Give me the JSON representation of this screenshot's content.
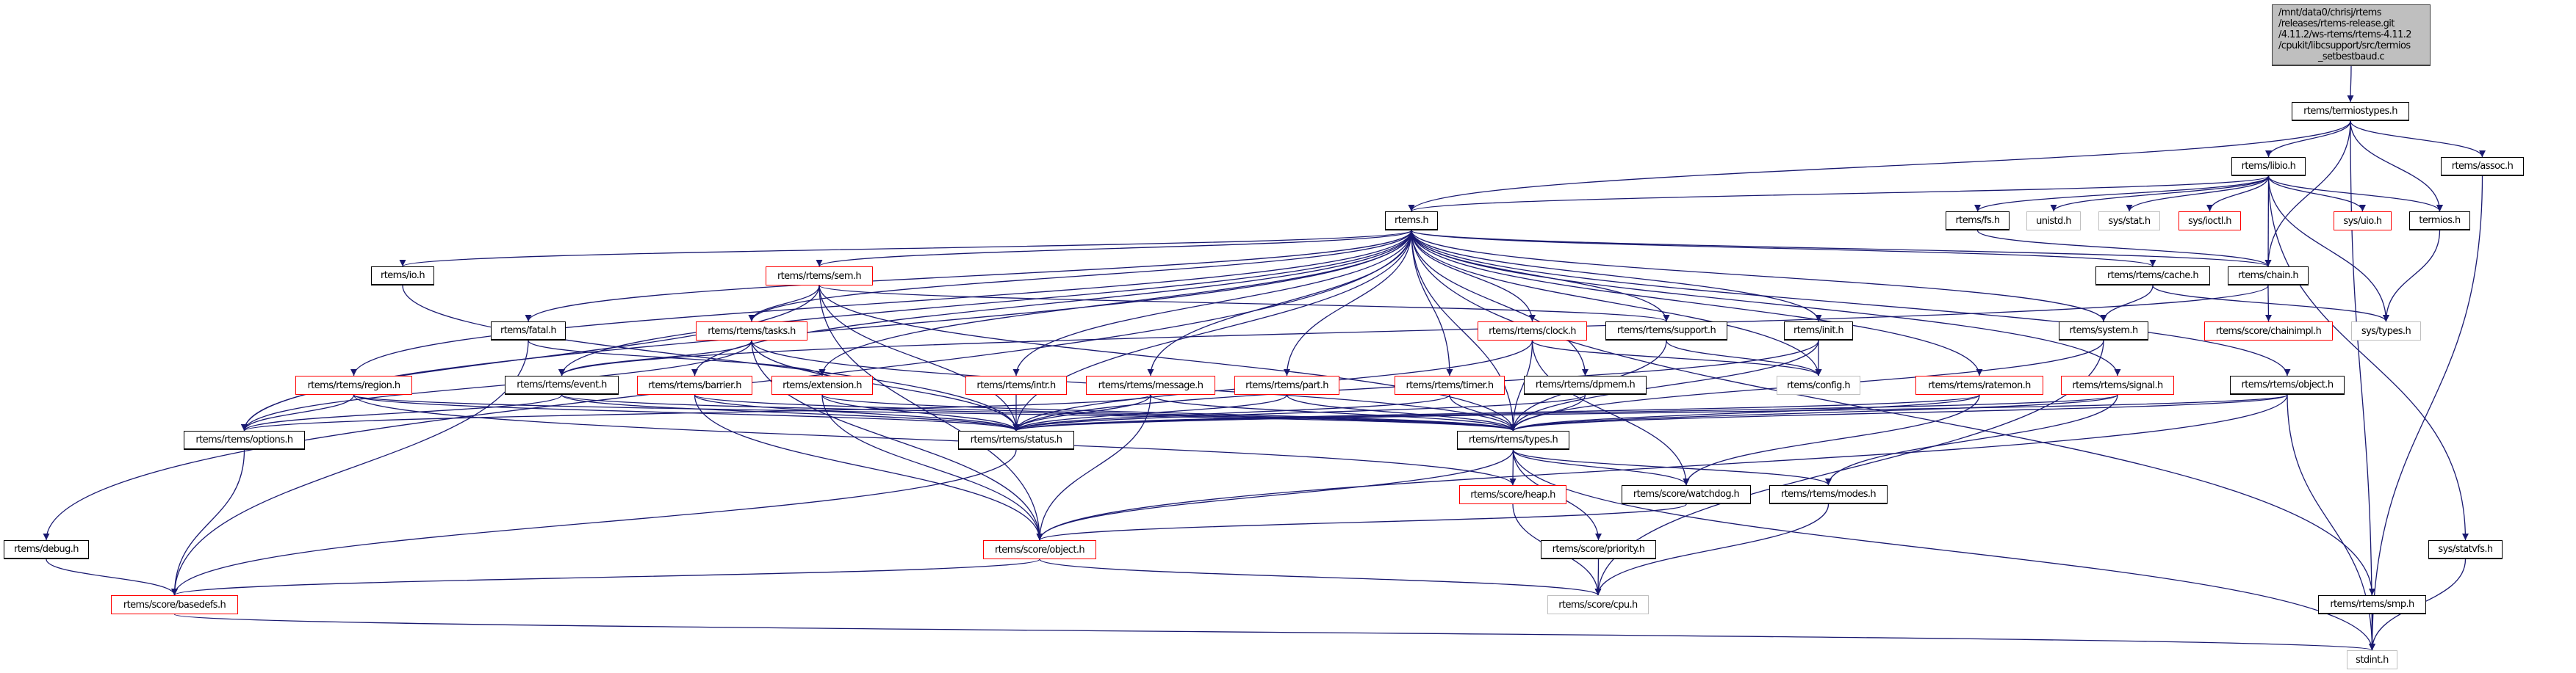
{
  "graph": {
    "colors": {
      "edge": "#191970",
      "root_fill": "#bfbfbf",
      "truncated_border": "#ff0000",
      "undocumented_border": "#bfbfbf",
      "documented_border": "#000000"
    },
    "root": {
      "id": "root",
      "lines": [
        "/mnt/data0/chrisj/rtems",
        "/releases/rtems-release.git",
        "/4.11.2/ws-rtems/rtems-4.11.2",
        "/cpukit/libcsupport/src/termios",
        "_setbestbaud.c"
      ]
    },
    "nodes": [
      {
        "id": "termiostypes",
        "label": "rtems/termiostypes.h",
        "style": "documented"
      },
      {
        "id": "libio",
        "label": "rtems/libio.h",
        "style": "documented"
      },
      {
        "id": "assoc",
        "label": "rtems/assoc.h",
        "style": "documented"
      },
      {
        "id": "rtems",
        "label": "rtems.h",
        "style": "documented"
      },
      {
        "id": "fs",
        "label": "rtems/fs.h",
        "style": "documented"
      },
      {
        "id": "unistd",
        "label": "unistd.h",
        "style": "undocumented"
      },
      {
        "id": "sysstat",
        "label": "sys/stat.h",
        "style": "undocumented"
      },
      {
        "id": "ioctl",
        "label": "sys/ioctl.h",
        "style": "truncated"
      },
      {
        "id": "uio",
        "label": "sys/uio.h",
        "style": "truncated"
      },
      {
        "id": "termios",
        "label": "termios.h",
        "style": "documented"
      },
      {
        "id": "io",
        "label": "rtems/io.h",
        "style": "documented"
      },
      {
        "id": "sem",
        "label": "rtems/rtems/sem.h",
        "style": "truncated"
      },
      {
        "id": "cache",
        "label": "rtems/rtems/cache.h",
        "style": "documented"
      },
      {
        "id": "chain",
        "label": "rtems/chain.h",
        "style": "documented"
      },
      {
        "id": "fatal",
        "label": "rtems/fatal.h",
        "style": "documented"
      },
      {
        "id": "tasks",
        "label": "rtems/rtems/tasks.h",
        "style": "truncated"
      },
      {
        "id": "clock",
        "label": "rtems/rtems/clock.h",
        "style": "truncated"
      },
      {
        "id": "support",
        "label": "rtems/rtems/support.h",
        "style": "documented"
      },
      {
        "id": "init",
        "label": "rtems/init.h",
        "style": "documented"
      },
      {
        "id": "system",
        "label": "rtems/system.h",
        "style": "documented"
      },
      {
        "id": "chainimpl",
        "label": "rtems/score/chainimpl.h",
        "style": "truncated"
      },
      {
        "id": "systypes",
        "label": "sys/types.h",
        "style": "undocumented"
      },
      {
        "id": "region",
        "label": "rtems/rtems/region.h",
        "style": "truncated"
      },
      {
        "id": "event",
        "label": "rtems/rtems/event.h",
        "style": "documented"
      },
      {
        "id": "barrier",
        "label": "rtems/rtems/barrier.h",
        "style": "truncated"
      },
      {
        "id": "extension",
        "label": "rtems/extension.h",
        "style": "truncated"
      },
      {
        "id": "intr",
        "label": "rtems/rtems/intr.h",
        "style": "truncated"
      },
      {
        "id": "message",
        "label": "rtems/rtems/message.h",
        "style": "truncated"
      },
      {
        "id": "part",
        "label": "rtems/rtems/part.h",
        "style": "truncated"
      },
      {
        "id": "timer",
        "label": "rtems/rtems/timer.h",
        "style": "truncated"
      },
      {
        "id": "dpmem",
        "label": "rtems/rtems/dpmem.h",
        "style": "documented"
      },
      {
        "id": "config",
        "label": "rtems/config.h",
        "style": "undocumented"
      },
      {
        "id": "ratemon",
        "label": "rtems/rtems/ratemon.h",
        "style": "truncated"
      },
      {
        "id": "signal",
        "label": "rtems/rtems/signal.h",
        "style": "truncated"
      },
      {
        "id": "robject",
        "label": "rtems/rtems/object.h",
        "style": "documented"
      },
      {
        "id": "options",
        "label": "rtems/rtems/options.h",
        "style": "documented"
      },
      {
        "id": "status",
        "label": "rtems/rtems/status.h",
        "style": "documented"
      },
      {
        "id": "types",
        "label": "rtems/rtems/types.h",
        "style": "documented"
      },
      {
        "id": "heap",
        "label": "rtems/score/heap.h",
        "style": "truncated"
      },
      {
        "id": "watchdog",
        "label": "rtems/score/watchdog.h",
        "style": "documented"
      },
      {
        "id": "modes",
        "label": "rtems/rtems/modes.h",
        "style": "documented"
      },
      {
        "id": "debug",
        "label": "rtems/debug.h",
        "style": "documented"
      },
      {
        "id": "sobject",
        "label": "rtems/score/object.h",
        "style": "truncated"
      },
      {
        "id": "priority",
        "label": "rtems/score/priority.h",
        "style": "documented"
      },
      {
        "id": "statvfs",
        "label": "sys/statvfs.h",
        "style": "documented"
      },
      {
        "id": "basedefs",
        "label": "rtems/score/basedefs.h",
        "style": "truncated"
      },
      {
        "id": "cpu",
        "label": "rtems/score/cpu.h",
        "style": "undocumented"
      },
      {
        "id": "smp",
        "label": "rtems/rtems/smp.h",
        "style": "documented"
      },
      {
        "id": "stdint",
        "label": "stdint.h",
        "style": "undocumented"
      }
    ],
    "edges": [
      [
        "root",
        "termiostypes"
      ],
      [
        "termiostypes",
        "rtems"
      ],
      [
        "termiostypes",
        "libio"
      ],
      [
        "termiostypes",
        "assoc"
      ],
      [
        "termiostypes",
        "termios"
      ],
      [
        "termiostypes",
        "chain"
      ],
      [
        "termiostypes",
        "stdint"
      ],
      [
        "libio",
        "rtems"
      ],
      [
        "libio",
        "fs"
      ],
      [
        "libio",
        "unistd"
      ],
      [
        "libio",
        "sysstat"
      ],
      [
        "libio",
        "ioctl"
      ],
      [
        "libio",
        "uio"
      ],
      [
        "libio",
        "termios"
      ],
      [
        "libio",
        "chain"
      ],
      [
        "libio",
        "systypes"
      ],
      [
        "libio",
        "statvfs"
      ],
      [
        "assoc",
        "stdint"
      ],
      [
        "fs",
        "chain"
      ],
      [
        "termios",
        "systypes"
      ],
      [
        "chain",
        "chainimpl"
      ],
      [
        "chain",
        "event"
      ],
      [
        "cache",
        "system"
      ],
      [
        "cache",
        "systypes"
      ],
      [
        "rtems",
        "io"
      ],
      [
        "rtems",
        "sem"
      ],
      [
        "rtems",
        "fatal"
      ],
      [
        "rtems",
        "tasks"
      ],
      [
        "rtems",
        "debug"
      ],
      [
        "rtems",
        "options"
      ],
      [
        "rtems",
        "region"
      ],
      [
        "rtems",
        "event"
      ],
      [
        "rtems",
        "barrier"
      ],
      [
        "rtems",
        "extension"
      ],
      [
        "rtems",
        "intr"
      ],
      [
        "rtems",
        "message"
      ],
      [
        "rtems",
        "part"
      ],
      [
        "rtems",
        "timer"
      ],
      [
        "rtems",
        "dpmem"
      ],
      [
        "rtems",
        "clock"
      ],
      [
        "rtems",
        "support"
      ],
      [
        "rtems",
        "init"
      ],
      [
        "rtems",
        "config"
      ],
      [
        "rtems",
        "ratemon"
      ],
      [
        "rtems",
        "signal"
      ],
      [
        "rtems",
        "robject"
      ],
      [
        "rtems",
        "cache"
      ],
      [
        "rtems",
        "chain"
      ],
      [
        "rtems",
        "system"
      ],
      [
        "rtems",
        "status"
      ],
      [
        "rtems",
        "types"
      ],
      [
        "rtems",
        "smp"
      ],
      [
        "io",
        "status"
      ],
      [
        "sem",
        "tasks"
      ],
      [
        "sem",
        "options"
      ],
      [
        "sem",
        "status"
      ],
      [
        "sem",
        "types"
      ],
      [
        "sem",
        "support"
      ],
      [
        "sem",
        "sobject"
      ],
      [
        "fatal",
        "extension"
      ],
      [
        "fatal",
        "basedefs"
      ],
      [
        "tasks",
        "event"
      ],
      [
        "tasks",
        "types"
      ],
      [
        "tasks",
        "status"
      ],
      [
        "tasks",
        "options"
      ],
      [
        "tasks",
        "sobject"
      ],
      [
        "region",
        "options"
      ],
      [
        "region",
        "status"
      ],
      [
        "region",
        "types"
      ],
      [
        "region",
        "heap"
      ],
      [
        "event",
        "options"
      ],
      [
        "event",
        "status"
      ],
      [
        "event",
        "types"
      ],
      [
        "barrier",
        "status"
      ],
      [
        "barrier",
        "types"
      ],
      [
        "barrier",
        "sobject"
      ],
      [
        "extension",
        "status"
      ],
      [
        "extension",
        "types"
      ],
      [
        "extension",
        "sobject"
      ],
      [
        "intr",
        "status"
      ],
      [
        "message",
        "options"
      ],
      [
        "message",
        "status"
      ],
      [
        "message",
        "types"
      ],
      [
        "message",
        "sobject"
      ],
      [
        "part",
        "status"
      ],
      [
        "part",
        "types"
      ],
      [
        "timer",
        "status"
      ],
      [
        "timer",
        "types"
      ],
      [
        "dpmem",
        "status"
      ],
      [
        "dpmem",
        "types"
      ],
      [
        "clock",
        "status"
      ],
      [
        "clock",
        "types"
      ],
      [
        "clock",
        "config"
      ],
      [
        "clock",
        "watchdog"
      ],
      [
        "support",
        "types"
      ],
      [
        "support",
        "config"
      ],
      [
        "init",
        "config"
      ],
      [
        "init",
        "types"
      ],
      [
        "init",
        "status"
      ],
      [
        "ratemon",
        "status"
      ],
      [
        "ratemon",
        "types"
      ],
      [
        "ratemon",
        "watchdog"
      ],
      [
        "signal",
        "status"
      ],
      [
        "signal",
        "types"
      ],
      [
        "signal",
        "modes"
      ],
      [
        "robject",
        "status"
      ],
      [
        "robject",
        "types"
      ],
      [
        "robject",
        "sobject"
      ],
      [
        "robject",
        "stdint"
      ],
      [
        "system",
        "cpu"
      ],
      [
        "system",
        "types"
      ],
      [
        "options",
        "basedefs"
      ],
      [
        "status",
        "basedefs"
      ],
      [
        "debug",
        "basedefs"
      ],
      [
        "types",
        "heap"
      ],
      [
        "types",
        "watchdog"
      ],
      [
        "types",
        "modes"
      ],
      [
        "types",
        "priority"
      ],
      [
        "types",
        "sobject"
      ],
      [
        "types",
        "stdint"
      ],
      [
        "heap",
        "cpu"
      ],
      [
        "watchdog",
        "sobject"
      ],
      [
        "priority",
        "cpu"
      ],
      [
        "modes",
        "cpu"
      ],
      [
        "sobject",
        "basedefs"
      ],
      [
        "sobject",
        "cpu"
      ],
      [
        "basedefs",
        "stdint"
      ],
      [
        "smp",
        "stdint"
      ],
      [
        "statvfs",
        "stdint"
      ]
    ]
  }
}
